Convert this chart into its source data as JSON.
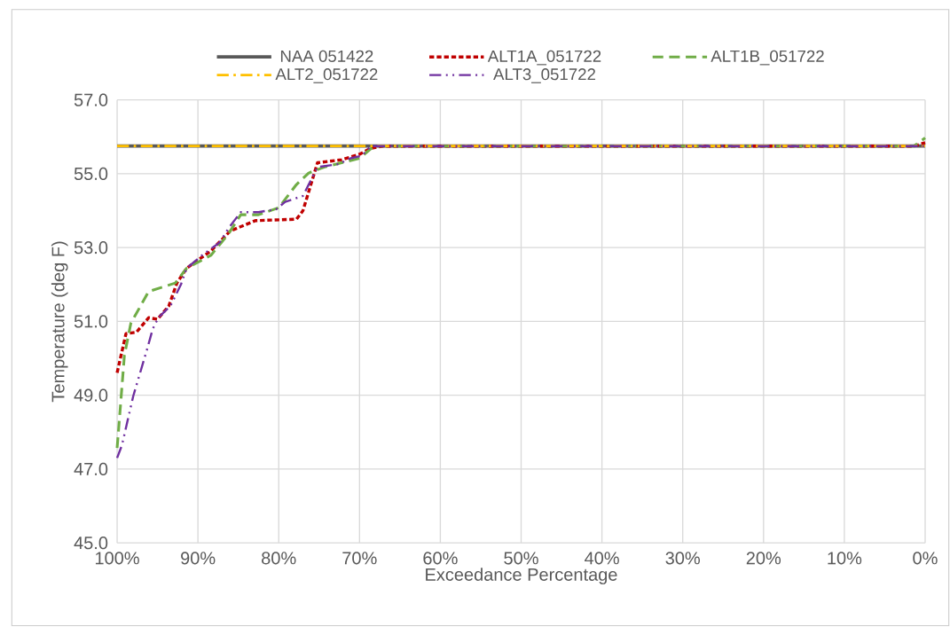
{
  "chart_data": {
    "type": "line",
    "xlabel": "Exceedance Percentage",
    "ylabel": "Temperature (deg F)",
    "xlim": [
      100,
      0
    ],
    "ylim": [
      45,
      57
    ],
    "xticks": [
      {
        "value": 100,
        "label": "100%"
      },
      {
        "value": 90,
        "label": "90%"
      },
      {
        "value": 80,
        "label": "80%"
      },
      {
        "value": 70,
        "label": "70%"
      },
      {
        "value": 60,
        "label": "60%"
      },
      {
        "value": 50,
        "label": "50%"
      },
      {
        "value": 40,
        "label": "40%"
      },
      {
        "value": 30,
        "label": "30%"
      },
      {
        "value": 20,
        "label": "20%"
      },
      {
        "value": 10,
        "label": "10%"
      },
      {
        "value": 0,
        "label": "0%"
      }
    ],
    "yticks": [
      {
        "value": 45,
        "label": "45.0"
      },
      {
        "value": 47,
        "label": "47.0"
      },
      {
        "value": 49,
        "label": "49.0"
      },
      {
        "value": 51,
        "label": "51.0"
      },
      {
        "value": 53,
        "label": "53.0"
      },
      {
        "value": 55,
        "label": "55.0"
      },
      {
        "value": 57,
        "label": "57.0"
      }
    ],
    "grid": true,
    "legend": "top",
    "marker": "none",
    "series": [
      {
        "name": "NAA 051422",
        "color": "#595959",
        "line_style": "solid",
        "x": [
          100,
          0
        ],
        "values": [
          55.75,
          55.75
        ]
      },
      {
        "name": "ALT1A_051722",
        "color": "#c00000",
        "line_style": "dashed",
        "x": [
          100,
          98.9,
          97.6,
          96.1,
          95.0,
          93.6,
          92.6,
          91.4,
          88.4,
          86.0,
          82.9,
          77.8,
          77.0,
          75.2,
          72.2,
          70.0,
          68.6,
          67.1,
          1.4,
          0
        ],
        "values": [
          49.61,
          50.67,
          50.71,
          51.1,
          51.06,
          51.42,
          52.04,
          52.44,
          52.91,
          53.45,
          53.73,
          53.77,
          54.0,
          55.3,
          55.38,
          55.53,
          55.69,
          55.75,
          55.75,
          55.84
        ]
      },
      {
        "name": "ALT1B_051722",
        "color": "#70ad47",
        "line_style": "longdashed",
        "x": [
          100,
          99.8,
          99.1,
          98.3,
          96.1,
          92.8,
          91.4,
          88.4,
          86.2,
          84.7,
          82.5,
          80.0,
          77.8,
          76.3,
          74.4,
          70.0,
          68.2,
          1.4,
          0
        ],
        "values": [
          47.57,
          48.12,
          50.08,
          50.95,
          51.81,
          52.04,
          52.44,
          52.79,
          53.38,
          53.89,
          53.89,
          54.08,
          54.71,
          55.02,
          55.18,
          55.42,
          55.75,
          55.75,
          55.97
        ]
      },
      {
        "name": "ALT2_051722",
        "color": "#ffc000",
        "line_style": "dashdot",
        "x": [
          100,
          0
        ],
        "values": [
          55.75,
          55.75
        ]
      },
      {
        "name": "ALT3_051722",
        "color": "#7030a0",
        "line_style": "dashdotdot",
        "x": [
          100,
          99.4,
          98.0,
          96.3,
          95.6,
          94.9,
          93.4,
          92.1,
          91.4,
          89.5,
          87.3,
          86.2,
          84.7,
          82.5,
          80.3,
          79.2,
          77.0,
          75.2,
          72.6,
          71.1,
          69.7,
          68.6,
          0
        ],
        "values": [
          47.3,
          47.65,
          48.98,
          50.24,
          50.79,
          51.1,
          51.42,
          52.0,
          52.44,
          52.79,
          53.14,
          53.53,
          53.96,
          53.96,
          54.04,
          54.24,
          54.4,
          55.18,
          55.26,
          55.42,
          55.49,
          55.75,
          55.75
        ]
      }
    ]
  }
}
